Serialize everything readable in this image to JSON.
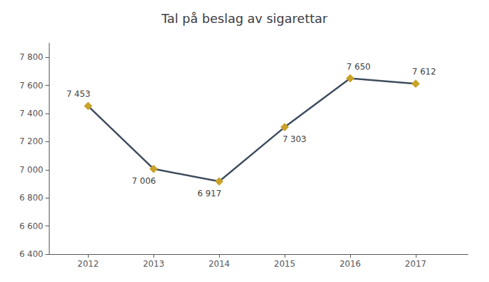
{
  "chart_data": {
    "type": "line",
    "title": "Tal på beslag av sigarettar",
    "x": [
      2012,
      2013,
      2014,
      2015,
      2016,
      2017
    ],
    "values": [
      7453,
      7006,
      6917,
      7303,
      7650,
      7612
    ],
    "value_labels": [
      "7 453",
      "7 006",
      "6 917",
      "7 303",
      "7 650",
      "7 612"
    ],
    "data_labels": true,
    "color": "#3d4a5c",
    "marker_color": "#c9a227",
    "marker": "diamond",
    "xlim": [
      2011.4,
      2017.8
    ],
    "xticks": [
      2012,
      2013,
      2014,
      2015,
      2016,
      2017
    ],
    "ylim": [
      6400,
      7900
    ],
    "yticks": [
      {
        "value": 6400,
        "label": "6 400"
      },
      {
        "value": 6600,
        "label": "6 600"
      },
      {
        "value": 6800,
        "label": "6 800"
      },
      {
        "value": 7000,
        "label": "7 000"
      },
      {
        "value": 7200,
        "label": "7 200"
      },
      {
        "value": 7400,
        "label": "7 400"
      },
      {
        "value": 7600,
        "label": "7 600"
      },
      {
        "value": 7800,
        "label": "7 800"
      }
    ],
    "grid": false
  }
}
